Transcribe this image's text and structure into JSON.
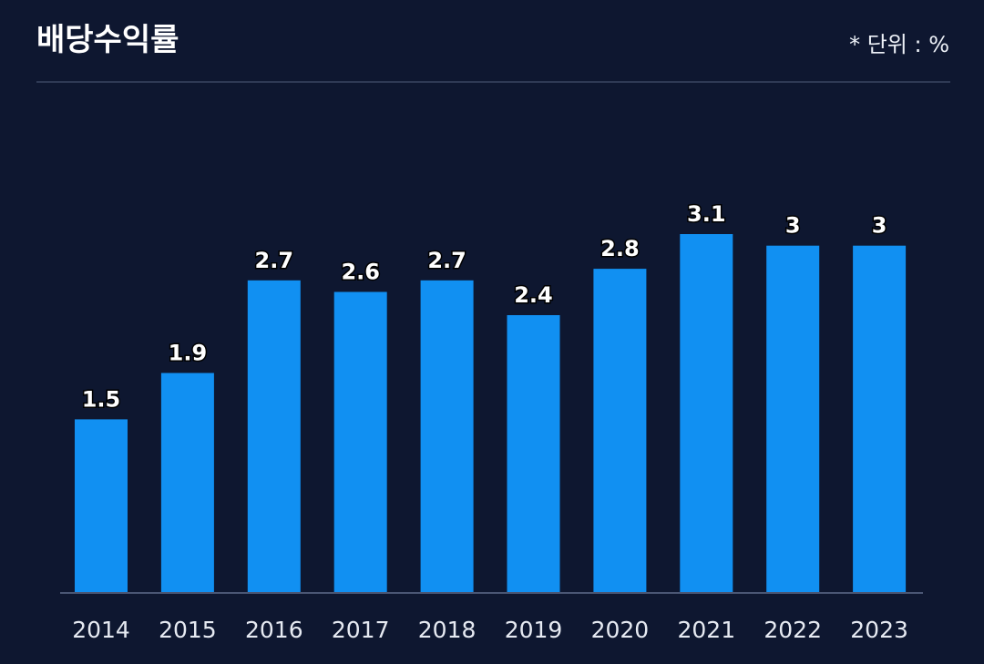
{
  "header": {
    "title": "배당수익률",
    "unit_label": "* 단위 : %"
  },
  "colors": {
    "background": "#0e1730",
    "bar": "#1190f2",
    "axis": "#4a5674",
    "label": "#ffffff",
    "tick": "#e6eaf2"
  },
  "chart_data": {
    "type": "bar",
    "title": "배당수익률",
    "xlabel": "",
    "ylabel": "",
    "categories": [
      "2014",
      "2015",
      "2016",
      "2017",
      "2018",
      "2019",
      "2020",
      "2021",
      "2022",
      "2023"
    ],
    "values": [
      1.5,
      1.9,
      2.7,
      2.6,
      2.7,
      2.4,
      2.8,
      3.1,
      3,
      3
    ],
    "value_labels": [
      "1.5",
      "1.9",
      "2.7",
      "2.6",
      "2.7",
      "2.4",
      "2.8",
      "3.1",
      "3",
      "3"
    ],
    "ylim": [
      0,
      3.1
    ],
    "grid": false,
    "legend": "none"
  }
}
